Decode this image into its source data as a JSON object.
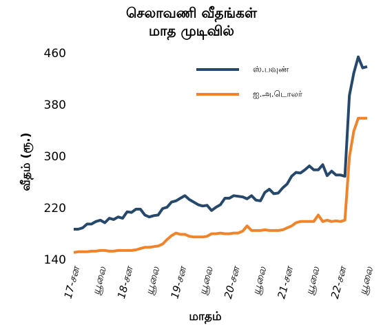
{
  "chart_data": {
    "type": "line",
    "title": "செலாவணி வீதங்கள்",
    "subtitle": "மாத முடிவில்",
    "y_label": "வீதம் (ரூ.)",
    "x_label": "மாதம்",
    "categories": [
      "17-சன",
      null,
      null,
      null,
      null,
      null,
      "யூலை",
      null,
      null,
      null,
      null,
      null,
      "18-சன",
      null,
      null,
      null,
      null,
      null,
      "யூலை",
      null,
      null,
      null,
      null,
      null,
      "19-சன",
      null,
      null,
      null,
      null,
      null,
      "யூலை",
      null,
      null,
      null,
      null,
      null,
      "20-சன",
      null,
      null,
      null,
      null,
      null,
      "யூலை",
      null,
      null,
      null,
      null,
      null,
      "21-சன",
      null,
      null,
      null,
      null,
      null,
      "யூலை",
      null,
      null,
      null,
      null,
      null,
      "22-சன",
      null,
      null,
      null,
      null,
      null,
      "யூலை"
    ],
    "series": [
      {
        "name": "ஸ்.பவுண்",
        "color": "#26486b",
        "values": [
          188,
          188,
          190,
          196,
          196,
          200,
          202,
          198,
          205,
          203,
          207,
          205,
          215,
          214,
          219,
          219,
          210,
          207,
          209,
          210,
          220,
          222,
          230,
          232,
          236,
          240,
          234,
          230,
          226,
          224,
          225,
          217,
          222,
          226,
          236,
          236,
          240,
          239,
          238,
          235,
          240,
          233,
          232,
          245,
          250,
          243,
          244,
          252,
          258,
          270,
          276,
          275,
          280,
          286,
          280,
          280,
          288,
          271,
          278,
          272,
          272,
          270,
          395,
          430,
          455,
          438,
          440
        ]
      },
      {
        "name": "ஐ.அ.டொலர்",
        "color": "#f0842b",
        "values": [
          152,
          153,
          153,
          153,
          154,
          154,
          155,
          155,
          154,
          154,
          155,
          155,
          155,
          155,
          156,
          158,
          160,
          160,
          161,
          162,
          165,
          172,
          178,
          182,
          180,
          180,
          177,
          176,
          176,
          176,
          177,
          181,
          181,
          182,
          181,
          181,
          182,
          182,
          185,
          193,
          186,
          186,
          186,
          187,
          186,
          186,
          186,
          187,
          190,
          193,
          198,
          200,
          200,
          200,
          200,
          210,
          200,
          202,
          200,
          201,
          200,
          202,
          300,
          340,
          360,
          360,
          360
        ]
      }
    ],
    "ylim": [
      140,
      460
    ],
    "yticks": [
      140,
      220,
      300,
      380,
      460
    ],
    "legend": "upper-right"
  }
}
